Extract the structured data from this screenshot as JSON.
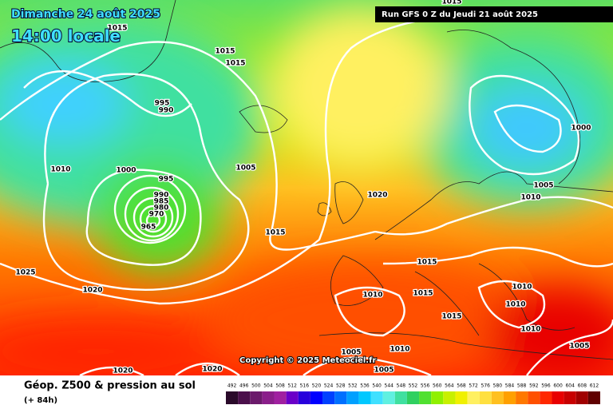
{
  "header": {
    "title": "Dimanche 24 août 2025",
    "time": "14:00 locale",
    "run": "Run GFS 0 Z du Jeudi 21 août 2025"
  },
  "copyright": "Copyright © 2025 Meteociel.fr",
  "isobar_labels": [
    1015,
    1015,
    1015,
    995,
    990,
    1010,
    1000,
    995,
    1005,
    990,
    985,
    980,
    970,
    965,
    1015,
    1020,
    1025,
    1020,
    1015,
    1015,
    1010,
    1015,
    1010,
    1005,
    1005,
    1020,
    1020,
    1000,
    1010,
    1005,
    1010,
    1010,
    1010,
    1005,
    1015
  ],
  "legend": {
    "title": "Géop. Z500 & pression au sol",
    "lead": "(+ 84h)",
    "scale": [
      492,
      496,
      500,
      504,
      508,
      512,
      516,
      520,
      524,
      528,
      532,
      536,
      540,
      544,
      548,
      552,
      556,
      560,
      564,
      568,
      572,
      576,
      580,
      584,
      588,
      592,
      596,
      600,
      604,
      608,
      612
    ],
    "colors": [
      "#2a0a2a",
      "#4b0f4b",
      "#6b1a6b",
      "#8a1e8a",
      "#a020a0",
      "#6a00c8",
      "#2800dc",
      "#0000ff",
      "#0040ff",
      "#0070ff",
      "#00a0ff",
      "#00c8ff",
      "#40e0ff",
      "#60f0e0",
      "#40e0a0",
      "#30d060",
      "#50e030",
      "#90f000",
      "#c8f000",
      "#f0f000",
      "#fff060",
      "#ffe040",
      "#ffc020",
      "#ffa000",
      "#ff7800",
      "#ff5000",
      "#ff2800",
      "#e80000",
      "#c80000",
      "#a00000",
      "#600000"
    ]
  }
}
